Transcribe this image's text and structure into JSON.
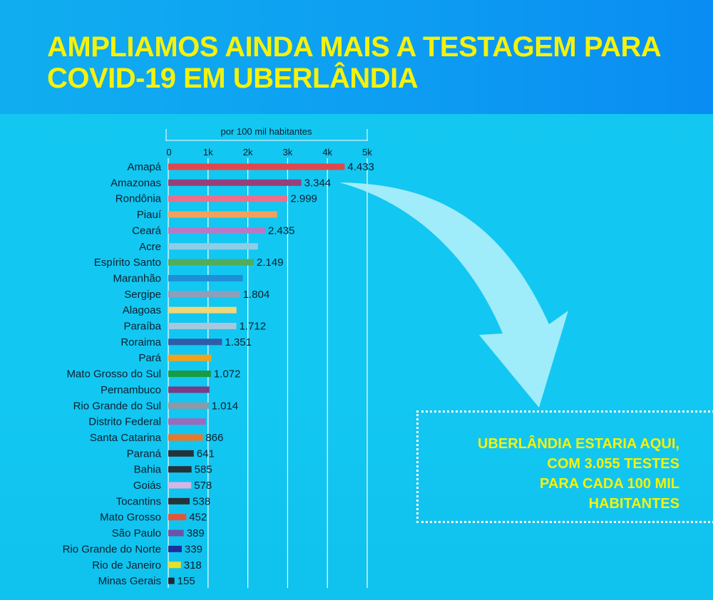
{
  "headline": "AMPLIAMOS AINDA MAIS A TESTAGEM PARA COVID-19 EM UBERLÂNDIA",
  "callout": "UBERLÂNDIA ESTARIA AQUI,\nCOM 3.055 TESTES\nPARA CADA  100 MIL\nHABITANTES",
  "chart_data": {
    "type": "bar",
    "orientation": "horizontal",
    "unit_label": "por 100 mil habitantes",
    "xlim": [
      0,
      5000
    ],
    "ticks": [
      {
        "value": 0,
        "label": "0"
      },
      {
        "value": 1000,
        "label": "1k"
      },
      {
        "value": 2000,
        "label": "2k"
      },
      {
        "value": 3000,
        "label": "3k"
      },
      {
        "value": 4000,
        "label": "4k"
      },
      {
        "value": 5000,
        "label": "5k"
      }
    ],
    "grid": true,
    "bars": [
      {
        "category": "Amapá",
        "value": 4433,
        "label": "4.433",
        "color": "#e0474c"
      },
      {
        "category": "Amazonas",
        "value": 3344,
        "label": "3.344",
        "color": "#96407a"
      },
      {
        "category": "Rondônia",
        "value": 2999,
        "label": "2.999",
        "color": "#ee6e8a"
      },
      {
        "category": "Piauí",
        "value": 2735,
        "label": "",
        "color": "#f2a15c"
      },
      {
        "category": "Ceará",
        "value": 2435,
        "label": "2.435",
        "color": "#b57ac6"
      },
      {
        "category": "Acre",
        "value": 2255,
        "label": "",
        "color": "#8ecde6"
      },
      {
        "category": "Espírito Santo",
        "value": 2149,
        "label": "2.149",
        "color": "#52ad5a"
      },
      {
        "category": "Maranhão",
        "value": 1875,
        "label": "",
        "color": "#1f8fd6"
      },
      {
        "category": "Sergipe",
        "value": 1804,
        "label": "1.804",
        "color": "#8e9fb9"
      },
      {
        "category": "Alagoas",
        "value": 1715,
        "label": "",
        "color": "#f0d778"
      },
      {
        "category": "Paraíba",
        "value": 1712,
        "label": "1.712",
        "color": "#a6c7de"
      },
      {
        "category": "Roraima",
        "value": 1351,
        "label": "1.351",
        "color": "#2f5ca8"
      },
      {
        "category": "Pará",
        "value": 1085,
        "label": "",
        "color": "#f3a21a"
      },
      {
        "category": "Mato Grosso do Sul",
        "value": 1072,
        "label": "1.072",
        "color": "#1a9a44"
      },
      {
        "category": "Pernambuco",
        "value": 1035,
        "label": "",
        "color": "#7a3c86"
      },
      {
        "category": "Rio Grande do Sul",
        "value": 1014,
        "label": "1.014",
        "color": "#8c9aa8"
      },
      {
        "category": "Distrito Federal",
        "value": 945,
        "label": "",
        "color": "#9b6bbd"
      },
      {
        "category": "Santa Catarina",
        "value": 866,
        "label": "866",
        "color": "#e9782a"
      },
      {
        "category": "Paraná",
        "value": 641,
        "label": "641",
        "color": "#26323a"
      },
      {
        "category": "Bahia",
        "value": 585,
        "label": "585",
        "color": "#26323a"
      },
      {
        "category": "Goiás",
        "value": 578,
        "label": "578",
        "color": "#d8b4e2"
      },
      {
        "category": "Tocantins",
        "value": 538,
        "label": "538",
        "color": "#26323a"
      },
      {
        "category": "Mato Grosso",
        "value": 452,
        "label": "452",
        "color": "#e3553a"
      },
      {
        "category": "São Paulo",
        "value": 389,
        "label": "389",
        "color": "#6d52a6"
      },
      {
        "category": "Rio Grande do Norte",
        "value": 339,
        "label": "339",
        "color": "#1d2f9a"
      },
      {
        "category": "Rio de Janeiro",
        "value": 318,
        "label": "318",
        "color": "#e6df2a"
      },
      {
        "category": "Minas Gerais",
        "value": 155,
        "label": "155",
        "color": "#1c2a36"
      }
    ]
  }
}
